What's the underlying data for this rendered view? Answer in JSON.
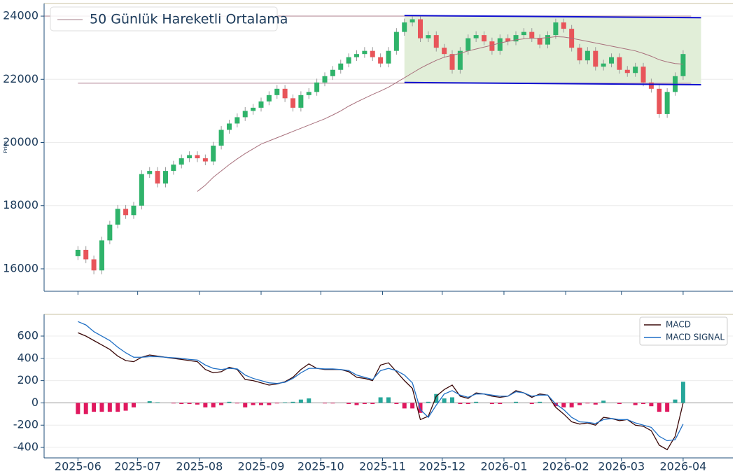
{
  "chart_data": [
    {
      "type": "candlestick",
      "y_label": "Price",
      "xlim": [
        -17,
        329
      ],
      "ylim": [
        15290,
        24400
      ],
      "yticks": [
        16000,
        18000,
        20000,
        22000,
        24000
      ],
      "grid": true,
      "up_color": "#2fb36a",
      "down_color": "#e8555a",
      "x": [
        0,
        4,
        8,
        12,
        16,
        20,
        24,
        28,
        32,
        36,
        40,
        44,
        48,
        52,
        56,
        60,
        64,
        68,
        72,
        76,
        80,
        84,
        88,
        92,
        96,
        100,
        104,
        108,
        112,
        116,
        120,
        124,
        128,
        132,
        136,
        140,
        144,
        148,
        152,
        156,
        160,
        164,
        168,
        172,
        176,
        180,
        184,
        188,
        192,
        196,
        200,
        204,
        208,
        212,
        216,
        220,
        224,
        228,
        232,
        236,
        240,
        244,
        248,
        252,
        256,
        260,
        264,
        268,
        272,
        276,
        280,
        284,
        288,
        292,
        296,
        300,
        304
      ],
      "open": [
        16400,
        16600,
        16300,
        15950,
        16900,
        17400,
        17900,
        17700,
        18000,
        19000,
        19100,
        18700,
        19100,
        19300,
        19500,
        19600,
        19500,
        19400,
        19900,
        20400,
        20600,
        20800,
        21000,
        21100,
        21300,
        21500,
        21700,
        21400,
        21100,
        21500,
        21600,
        21900,
        22100,
        22300,
        22500,
        22700,
        22800,
        22900,
        22700,
        22500,
        22900,
        23500,
        23800,
        23900,
        23300,
        23400,
        23000,
        22800,
        22300,
        22900,
        23300,
        23400,
        23200,
        22900,
        23300,
        23200,
        23400,
        23500,
        23300,
        23100,
        23400,
        23800,
        23600,
        23000,
        22600,
        22900,
        22400,
        22500,
        22700,
        22300,
        22200,
        22400,
        21900,
        21700,
        20900,
        21600,
        22100
      ],
      "high": [
        16720,
        16720,
        16420,
        17020,
        17520,
        18020,
        18020,
        18120,
        19120,
        19220,
        19220,
        19220,
        19420,
        19620,
        19720,
        19720,
        19620,
        20020,
        20520,
        20720,
        20920,
        21120,
        21220,
        21420,
        21620,
        21820,
        21820,
        21520,
        21620,
        21720,
        22020,
        22220,
        22420,
        22620,
        22820,
        22920,
        23020,
        23020,
        22820,
        23020,
        23620,
        23920,
        24020,
        24020,
        23520,
        23520,
        23120,
        22920,
        23020,
        23420,
        23520,
        23520,
        23320,
        23420,
        23420,
        23520,
        23620,
        23620,
        23420,
        23520,
        23920,
        23920,
        23720,
        23120,
        23020,
        23020,
        22620,
        22820,
        22820,
        22420,
        22520,
        22520,
        22020,
        21820,
        21720,
        22220,
        22920
      ],
      "low": [
        16280,
        16180,
        15830,
        15830,
        16780,
        17280,
        17580,
        17580,
        17880,
        18880,
        18580,
        18580,
        18980,
        19180,
        19380,
        19380,
        19280,
        19280,
        19780,
        20280,
        20480,
        20680,
        20880,
        20980,
        21180,
        21380,
        21280,
        20980,
        20980,
        21380,
        21480,
        21780,
        21980,
        22180,
        22380,
        22580,
        22680,
        22580,
        22380,
        22380,
        22780,
        23380,
        23680,
        23180,
        23180,
        22880,
        22680,
        22180,
        22180,
        22780,
        23180,
        23080,
        22780,
        22780,
        23080,
        23080,
        23280,
        23180,
        22980,
        22980,
        23280,
        23480,
        22880,
        22480,
        22480,
        22280,
        22280,
        22380,
        22180,
        22080,
        22080,
        21780,
        21580,
        20780,
        20780,
        21480,
        21980
      ],
      "close": [
        16600,
        16300,
        15950,
        16900,
        17400,
        17900,
        17700,
        18000,
        19000,
        19100,
        18700,
        19100,
        19300,
        19500,
        19600,
        19500,
        19400,
        19900,
        20400,
        20600,
        20800,
        21000,
        21100,
        21300,
        21500,
        21700,
        21400,
        21100,
        21500,
        21600,
        21900,
        22100,
        22300,
        22500,
        22700,
        22800,
        22900,
        22700,
        22500,
        22900,
        23500,
        23800,
        23900,
        23300,
        23400,
        23000,
        22800,
        22300,
        22900,
        23300,
        23400,
        23200,
        22900,
        23300,
        23200,
        23400,
        23500,
        23300,
        23100,
        23400,
        23800,
        23600,
        23000,
        22600,
        22900,
        22400,
        22500,
        22700,
        22300,
        22200,
        22400,
        21900,
        21700,
        20900,
        21600,
        22100,
        22800
      ],
      "series": [
        {
          "name": "50 Günlük Hareketli Ortalama",
          "color": "#a8707c",
          "legend_color": "#c4a8b0",
          "values": [
            null,
            null,
            null,
            null,
            null,
            null,
            null,
            null,
            null,
            null,
            null,
            null,
            null,
            null,
            null,
            18450,
            18650,
            18900,
            19100,
            19300,
            19480,
            19650,
            19800,
            19950,
            20050,
            20150,
            20250,
            20350,
            20450,
            20550,
            20650,
            20750,
            20870,
            21000,
            21150,
            21280,
            21400,
            21520,
            21630,
            21750,
            21900,
            22050,
            22200,
            22350,
            22480,
            22600,
            22700,
            22760,
            22820,
            22900,
            22960,
            23020,
            23080,
            23150,
            23200,
            23250,
            23280,
            23300,
            23300,
            23320,
            23350,
            23340,
            23300,
            23250,
            23200,
            23150,
            23100,
            23050,
            23000,
            22950,
            22900,
            22820,
            22730,
            22620,
            22550,
            22500,
            22480
          ]
        }
      ],
      "levels": [
        {
          "x": [
            -17,
            308
          ],
          "y": [
            24000,
            24000
          ],
          "color": "#c8aab4"
        },
        {
          "x": [
            0,
            308
          ],
          "y": [
            21880,
            21880
          ],
          "color": "#c8aab4"
        }
      ],
      "channel": {
        "x": [
          164,
          313
        ],
        "upper": [
          24020,
          23950
        ],
        "lower": [
          21900,
          21830
        ],
        "line_color": "#1010d0",
        "fill": "#e1eed8"
      }
    },
    {
      "type": "macd",
      "xlim": [
        -17,
        329
      ],
      "ylim": [
        -494,
        795
      ],
      "yticks": [
        -400,
        -200,
        0,
        200,
        400,
        600
      ],
      "grid": true,
      "xticks": [
        {
          "value": 0,
          "label": "2025-06"
        },
        {
          "value": 30,
          "label": "2025-07"
        },
        {
          "value": 61,
          "label": "2025-08"
        },
        {
          "value": 92,
          "label": "2025-09"
        },
        {
          "value": 122,
          "label": "2025-10"
        },
        {
          "value": 153,
          "label": "2025-11"
        },
        {
          "value": 183,
          "label": "2025-12"
        },
        {
          "value": 214,
          "label": "2026-01"
        },
        {
          "value": 245,
          "label": "2026-02"
        },
        {
          "value": 273,
          "label": "2026-03"
        },
        {
          "value": 304,
          "label": "2026-04"
        }
      ],
      "x": [
        0,
        4,
        8,
        12,
        16,
        20,
        24,
        28,
        32,
        36,
        40,
        44,
        48,
        52,
        56,
        60,
        64,
        68,
        72,
        76,
        80,
        84,
        88,
        92,
        96,
        100,
        104,
        108,
        112,
        116,
        120,
        124,
        128,
        132,
        136,
        140,
        144,
        148,
        152,
        156,
        160,
        164,
        168,
        172,
        176,
        180,
        184,
        188,
        192,
        196,
        200,
        204,
        208,
        212,
        216,
        220,
        224,
        228,
        232,
        236,
        240,
        244,
        248,
        252,
        256,
        260,
        264,
        268,
        272,
        276,
        280,
        284,
        288,
        292,
        296,
        300,
        304
      ],
      "series": [
        {
          "name": "MACD",
          "color": "#3a0808",
          "values": [
            630,
            600,
            560,
            520,
            480,
            420,
            380,
            370,
            410,
            430,
            420,
            410,
            400,
            390,
            380,
            370,
            300,
            270,
            280,
            320,
            300,
            210,
            200,
            180,
            160,
            170,
            190,
            230,
            300,
            350,
            310,
            300,
            300,
            300,
            280,
            230,
            220,
            200,
            340,
            360,
            280,
            200,
            130,
            -150,
            -120,
            60,
            120,
            160,
            60,
            40,
            90,
            80,
            60,
            50,
            60,
            110,
            90,
            50,
            80,
            70,
            -40,
            -100,
            -170,
            -190,
            -180,
            -200,
            -130,
            -140,
            -160,
            -150,
            -200,
            -210,
            -250,
            -380,
            -420,
            -300,
            0
          ]
        },
        {
          "name": "MACD SIGNAL",
          "color": "#1f6fc5",
          "values": [
            730,
            700,
            640,
            600,
            560,
            500,
            450,
            410,
            410,
            415,
            415,
            410,
            405,
            400,
            390,
            385,
            340,
            310,
            300,
            310,
            305,
            250,
            220,
            200,
            180,
            175,
            185,
            220,
            270,
            310,
            310,
            305,
            305,
            300,
            290,
            250,
            230,
            210,
            290,
            310,
            290,
            250,
            180,
            -60,
            -130,
            -20,
            80,
            110,
            70,
            50,
            80,
            80,
            70,
            60,
            60,
            100,
            90,
            60,
            70,
            70,
            -10,
            -60,
            -130,
            -170,
            -175,
            -185,
            -150,
            -140,
            -150,
            -150,
            -180,
            -200,
            -220,
            -300,
            -340,
            -330,
            -190
          ]
        }
      ],
      "histogram": {
        "positive_color": "#26a69a",
        "negative_color": "#e0185e",
        "values": [
          -100,
          -100,
          -80,
          -80,
          -80,
          -80,
          -70,
          -40,
          0,
          15,
          5,
          0,
          -5,
          -10,
          -10,
          -15,
          -40,
          -40,
          -20,
          10,
          -5,
          -40,
          -20,
          -20,
          -20,
          -5,
          5,
          10,
          30,
          40,
          0,
          -5,
          -5,
          0,
          -10,
          -20,
          -10,
          -10,
          50,
          50,
          -10,
          -50,
          -50,
          -90,
          10,
          80,
          40,
          50,
          -10,
          -10,
          10,
          0,
          -10,
          -10,
          0,
          10,
          0,
          -10,
          10,
          0,
          -30,
          -40,
          -40,
          -20,
          -5,
          -15,
          20,
          0,
          -10,
          0,
          -20,
          -10,
          -30,
          -80,
          -80,
          30,
          190
        ]
      },
      "legend": "upper right"
    }
  ]
}
